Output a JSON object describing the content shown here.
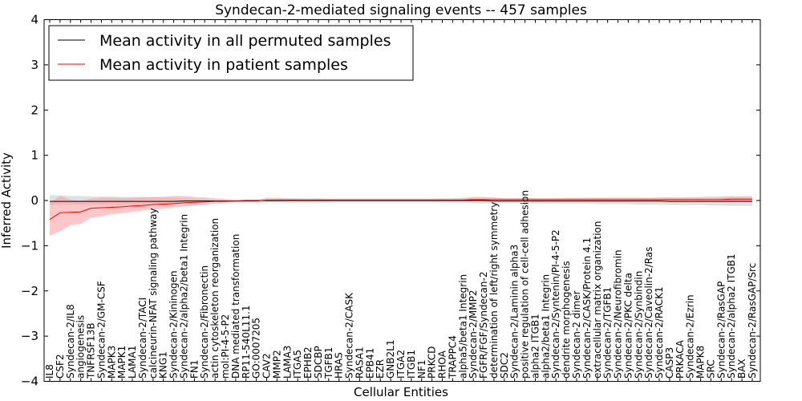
{
  "chart_data": {
    "type": "line",
    "title": "Syndecan-2-mediated signaling events -- 457 samples",
    "xlabel": "Cellular Entities",
    "ylabel": "Inferred Activity",
    "ylim": [
      -4,
      4
    ],
    "yticks": [
      "4",
      "3",
      "2",
      "1",
      "0",
      "−1",
      "−2",
      "−3",
      "−4"
    ],
    "yticks_values": [
      4,
      3,
      2,
      1,
      0,
      -1,
      -2,
      -3,
      -4
    ],
    "legend_position": "top-left",
    "categories": [
      "IL8",
      "CSF2",
      "Syndecan-2/IL8",
      "angiogenesis",
      "TNFRSF13B",
      "Syndecan-2/GM-CSF",
      "MAPK3",
      "MAPK1",
      "LAMA1",
      "Syndecan-2/TACI",
      "calcineurin-NFAT signaling pathway",
      "KNG1",
      "Syndecan-2/Kininogen",
      "Syndecan-2/alpha2/beta1 Integrin",
      "FN1",
      "Syndecan-2/Fibronectin",
      "actin cytoskeleton reorganization",
      "mol:PI-4-5-P2",
      "DNA mediated transformation",
      "RP11-540L11.1",
      "GO:0007205",
      "CAV2",
      "MMP2",
      "LAMA3",
      "ITGA5",
      "EPHB2",
      "SDCBP",
      "TGFB1",
      "HRAS",
      "Syndecan-2/CASK",
      "RASA1",
      "EPB41",
      "EZR",
      "GNB2L1",
      "ITGA2",
      "ITGB1",
      "NF1",
      "PRKCD",
      "RHOA",
      "TRAPPC4",
      "alpha5/beta1 Integrin",
      "Syndecan-2/MMP2",
      "FGFR/FGF/Syndecan-2",
      "determination of left/right symmetry",
      "SDC2",
      "Syndecan-2/Laminin alpha3",
      "positive regulation of cell-cell adhesion",
      "alpha2 ITGB1",
      "alpha2/beta1 Integrin",
      "Syndecan-2/Syntenin/PI-4-5-P2",
      "dendrite morphogenesis",
      "Syndecan-2 dimer",
      "Syndecan-2/CASK/Protein 4.1",
      "extracellular matrix organization",
      "Syndecan-2/TGFB1",
      "Syndecan-2/Neurofibromin",
      "Syndecan-2/PKC delta",
      "Syndecan-2/Synbindin",
      "Syndecan-2/Caveolin-2/Ras",
      "Syndecan-2/RACK1",
      "CASP3",
      "PRKACA",
      "Syndecan-2/Ezrin",
      "MAPK8",
      "SRC",
      "Syndecan-2/RasGAP",
      "Syndecan-2/alpha2 ITGB1",
      "BAX",
      "Syndecan-2/RasGAP/Src"
    ],
    "series": [
      {
        "name": "Mean activity in all permuted samples",
        "color": "#000000",
        "band_color": "#cccccc",
        "values": [
          -0.02,
          -0.02,
          -0.02,
          -0.02,
          -0.02,
          -0.02,
          -0.02,
          -0.02,
          -0.02,
          -0.02,
          -0.02,
          -0.02,
          -0.02,
          -0.01,
          -0.01,
          -0.01,
          -0.01,
          -0.01,
          -0.01,
          0,
          0,
          0,
          0,
          0,
          0,
          0,
          0,
          0,
          0,
          0,
          0,
          0,
          0,
          0,
          0,
          0,
          0,
          0,
          0,
          0,
          0,
          0,
          0,
          -0.01,
          -0.01,
          -0.01,
          -0.01,
          -0.01,
          -0.01,
          -0.01,
          -0.01,
          -0.01,
          -0.01,
          -0.01,
          -0.01,
          -0.01,
          -0.01,
          -0.01,
          -0.01,
          -0.01,
          -0.02,
          -0.02,
          -0.02,
          -0.02,
          -0.02,
          -0.02,
          -0.02,
          -0.02,
          -0.02
        ],
        "lower": [
          -0.1,
          -0.1,
          -0.1,
          -0.1,
          -0.1,
          -0.1,
          -0.1,
          -0.1,
          -0.09,
          -0.09,
          -0.08,
          -0.08,
          -0.07,
          -0.06,
          -0.05,
          -0.04,
          -0.03,
          -0.02,
          -0.01,
          -0.01,
          -0.01,
          -0.03,
          -0.04,
          -0.05,
          -0.05,
          -0.05,
          -0.05,
          -0.05,
          -0.04,
          -0.04,
          -0.04,
          -0.04,
          -0.04,
          -0.04,
          -0.04,
          -0.04,
          -0.04,
          -0.04,
          -0.05,
          -0.05,
          -0.05,
          -0.06,
          -0.06,
          -0.06,
          -0.06,
          -0.06,
          -0.06,
          -0.07,
          -0.07,
          -0.07,
          -0.07,
          -0.07,
          -0.07,
          -0.08,
          -0.08,
          -0.08,
          -0.08,
          -0.09,
          -0.09,
          -0.09,
          -0.1,
          -0.1,
          -0.1,
          -0.1,
          -0.11,
          -0.11,
          -0.12,
          -0.12,
          -0.12
        ],
        "upper": [
          0.12,
          0.11,
          0.1,
          0.1,
          0.09,
          0.09,
          0.09,
          0.08,
          0.08,
          0.08,
          0.07,
          0.07,
          0.06,
          0.05,
          0.04,
          0.03,
          0.02,
          0.01,
          0.01,
          0.01,
          0.01,
          0.02,
          0.03,
          0.04,
          0.04,
          0.04,
          0.04,
          0.04,
          0.04,
          0.04,
          0.04,
          0.04,
          0.04,
          0.04,
          0.04,
          0.04,
          0.04,
          0.04,
          0.04,
          0.04,
          0.05,
          0.05,
          0.05,
          0.05,
          0.05,
          0.05,
          0.05,
          0.05,
          0.05,
          0.05,
          0.05,
          0.05,
          0.05,
          0.06,
          0.06,
          0.06,
          0.06,
          0.06,
          0.06,
          0.07,
          0.07,
          0.07,
          0.08,
          0.08,
          0.09,
          0.09,
          0.1,
          0.1,
          0.1
        ]
      },
      {
        "name": "Mean activity in patient samples",
        "color": "#ff0000",
        "band_color": "#ff9999",
        "values": [
          -0.42,
          -0.27,
          -0.26,
          -0.25,
          -0.17,
          -0.16,
          -0.15,
          -0.14,
          -0.12,
          -0.11,
          -0.09,
          -0.08,
          -0.07,
          -0.05,
          -0.04,
          -0.03,
          -0.02,
          -0.02,
          -0.01,
          -0.01,
          -0.01,
          0.01,
          0.01,
          0.01,
          0.01,
          0.01,
          0.01,
          0.01,
          0.01,
          0.01,
          0.01,
          0.01,
          0.01,
          0.01,
          0.01,
          0.01,
          0.01,
          0.01,
          0.01,
          0.01,
          0.01,
          0.02,
          0.02,
          0.02,
          0.02,
          0.02,
          0.02,
          0.02,
          0.02,
          0.02,
          0.02,
          0.02,
          0.02,
          0.02,
          0.02,
          0.02,
          0.02,
          0.02,
          0.02,
          0.02,
          0.02,
          0.02,
          0.02,
          0.02,
          0.02,
          0.02,
          0.03,
          0.03,
          0.03
        ],
        "lower": [
          -0.78,
          -0.68,
          -0.55,
          -0.52,
          -0.38,
          -0.35,
          -0.3,
          -0.28,
          -0.25,
          -0.22,
          -0.2,
          -0.18,
          -0.15,
          -0.13,
          -0.11,
          -0.09,
          -0.07,
          -0.05,
          -0.03,
          -0.02,
          -0.02,
          -0.03,
          -0.03,
          -0.02,
          -0.02,
          -0.02,
          -0.02,
          -0.02,
          -0.02,
          -0.02,
          -0.02,
          -0.02,
          -0.02,
          -0.02,
          -0.02,
          -0.02,
          -0.02,
          -0.02,
          -0.02,
          -0.02,
          -0.02,
          -0.02,
          -0.02,
          -0.02,
          -0.02,
          -0.02,
          -0.02,
          -0.02,
          -0.02,
          -0.02,
          -0.02,
          -0.02,
          -0.02,
          -0.02,
          -0.02,
          -0.02,
          -0.02,
          -0.02,
          -0.02,
          -0.02,
          -0.02,
          -0.02,
          -0.02,
          -0.02,
          -0.02,
          -0.02,
          -0.02,
          -0.02,
          -0.02
        ],
        "upper": [
          -0.05,
          0.1,
          0.02,
          0.0,
          0.04,
          0.06,
          0.06,
          0.05,
          0.06,
          0.07,
          0.08,
          0.08,
          0.1,
          0.1,
          0.08,
          0.07,
          0.05,
          0.03,
          0.02,
          0.01,
          0.01,
          0.06,
          0.06,
          0.05,
          0.05,
          0.04,
          0.05,
          0.04,
          0.04,
          0.04,
          0.04,
          0.04,
          0.04,
          0.04,
          0.04,
          0.04,
          0.04,
          0.04,
          0.05,
          0.05,
          0.06,
          0.08,
          0.08,
          0.07,
          0.05,
          0.05,
          0.06,
          0.05,
          0.05,
          0.05,
          0.06,
          0.06,
          0.06,
          0.06,
          0.06,
          0.06,
          0.06,
          0.06,
          0.06,
          0.06,
          0.06,
          0.06,
          0.06,
          0.06,
          0.06,
          0.07,
          0.08,
          0.08,
          0.08
        ]
      }
    ]
  }
}
